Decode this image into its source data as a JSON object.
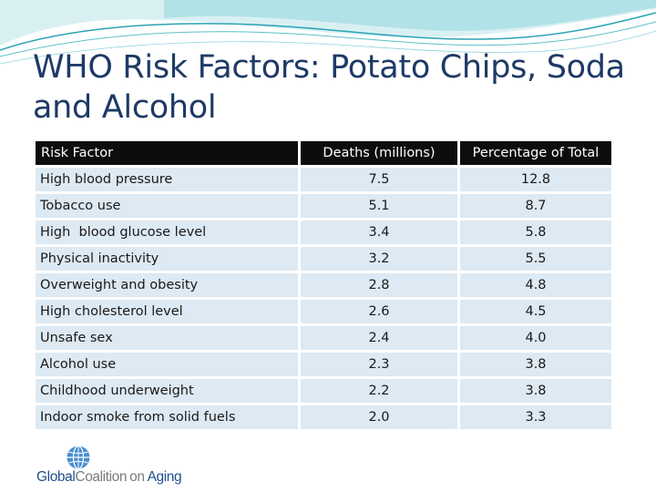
{
  "slide": {
    "title": "WHO Risk Factors: Potato Chips, Soda and Alcohol"
  },
  "table": {
    "headers": [
      "Risk Factor",
      "Deaths (millions)",
      "Percentage of Total"
    ],
    "rows": [
      {
        "factor": "High blood pressure",
        "deaths": "7.5",
        "percent": "12.8"
      },
      {
        "factor": "Tobacco use",
        "deaths": "5.1",
        "percent": "8.7"
      },
      {
        "factor": "High  blood glucose level",
        "deaths": "3.4",
        "percent": "5.8"
      },
      {
        "factor": "Physical inactivity",
        "deaths": "3.2",
        "percent": "5.5"
      },
      {
        "factor": "Overweight and obesity",
        "deaths": "2.8",
        "percent": "4.8"
      },
      {
        "factor": "High cholesterol level",
        "deaths": "2.6",
        "percent": "4.5"
      },
      {
        "factor": "Unsafe sex",
        "deaths": "2.4",
        "percent": "4.0"
      },
      {
        "factor": "Alcohol use",
        "deaths": "2.3",
        "percent": "3.8"
      },
      {
        "factor": "Childhood underweight",
        "deaths": "2.2",
        "percent": "3.8"
      },
      {
        "factor": "Indoor smoke from solid fuels",
        "deaths": "2.0",
        "percent": "3.3"
      }
    ]
  },
  "logo": {
    "word1": "Global",
    "word2": "Coalition",
    "word3": "on",
    "word4": "Aging",
    "icon": "globe-icon"
  },
  "colors": {
    "title": "#1e3a66",
    "header_bg": "#0d0d0d",
    "cell_bg": "#dde9f3",
    "accent_teal": "#5bc0c8"
  }
}
